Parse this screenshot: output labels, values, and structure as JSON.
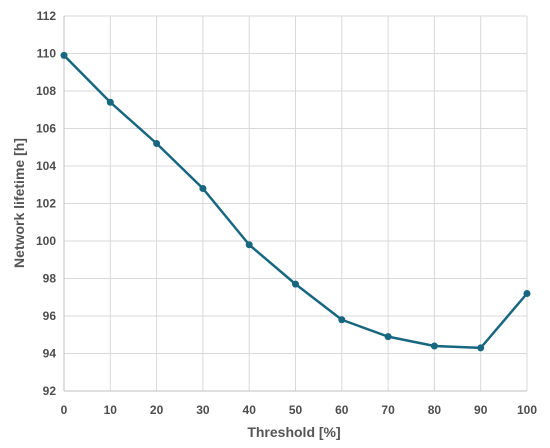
{
  "chart_data": {
    "type": "line",
    "xlabel": "Threshold [%]",
    "ylabel": "Network lifetime [h]",
    "xlim": [
      0,
      100
    ],
    "ylim": [
      92,
      112
    ],
    "xticks": [
      0,
      10,
      20,
      30,
      40,
      50,
      60,
      70,
      80,
      90,
      100
    ],
    "yticks": [
      92,
      94,
      96,
      98,
      100,
      102,
      104,
      106,
      108,
      110,
      112
    ],
    "grid": true,
    "legend": "none",
    "colors": {
      "line": "#16677f",
      "grid": "#d9d9d9",
      "axis": "#bfbfbf"
    },
    "series": [
      {
        "x": [
          0,
          10,
          20,
          30,
          40,
          50,
          60,
          70,
          80,
          90,
          100
        ],
        "y": [
          109.9,
          107.4,
          105.2,
          102.8,
          99.8,
          97.7,
          95.8,
          94.9,
          94.4,
          94.3,
          97.2
        ]
      }
    ]
  }
}
